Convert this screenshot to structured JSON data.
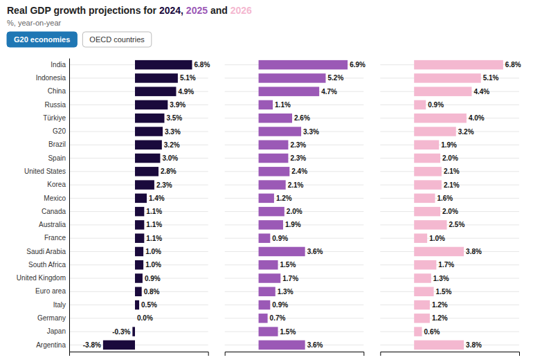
{
  "chart_data": [
    {
      "type": "bar",
      "orientation": "horizontal",
      "title": "Real GDP growth projections for 2024, 2025 and 2026",
      "subtitle": "%, year-on-year",
      "annotations": [
        "G20 economies",
        "OECD countries"
      ],
      "categories": [
        "India",
        "Indonesia",
        "China",
        "Russia",
        "Türkiye",
        "G20",
        "Brazil",
        "Spain",
        "United States",
        "Korea",
        "Mexico",
        "Canada",
        "Australia",
        "France",
        "Saudi Arabia",
        "South Africa",
        "United Kingdom",
        "Euro area",
        "Italy",
        "Germany",
        "Japan",
        "Argentina"
      ],
      "series": [
        {
          "name": "2024",
          "color": "#1a0a3c",
          "values": [
            6.8,
            5.1,
            4.9,
            3.9,
            3.5,
            3.3,
            3.2,
            3.0,
            2.8,
            2.3,
            1.4,
            1.1,
            1.1,
            1.1,
            1.0,
            1.0,
            0.9,
            0.8,
            0.5,
            0.0,
            -0.3,
            -3.8
          ],
          "value_labels": [
            "6.8%",
            "5.1%",
            "4.9%",
            "3.9%",
            "3.5%",
            "3.3%",
            "3.2%",
            "3.0%",
            "2.8%",
            "2.3%",
            "1.4%",
            "1.1%",
            "1.1%",
            "1.1%",
            "1.0%",
            "1.0%",
            "0.9%",
            "0.8%",
            "0.5%",
            "0.0%",
            "-0.3%",
            "-3.8%"
          ]
        }
      ],
      "xlim": [
        -7.828,
        8.708
      ],
      "grid": true,
      "data_labels": true,
      "tick_labels": "y"
    },
    {
      "type": "bar",
      "orientation": "horizontal",
      "series": [
        {
          "name": "2025",
          "color": "#9b59b6",
          "values": [
            6.9,
            5.2,
            4.7,
            1.1,
            2.6,
            3.3,
            2.3,
            2.3,
            2.4,
            2.1,
            1.2,
            2.0,
            1.9,
            0.9,
            3.6,
            1.5,
            1.7,
            1.3,
            0.9,
            0.7,
            1.5,
            3.6
          ],
          "value_labels": [
            "6.9%",
            "5.2%",
            "4.7%",
            "1.1%",
            "2.6%",
            "3.3%",
            "2.3%",
            "2.3%",
            "2.4%",
            "2.1%",
            "1.2%",
            "2.0%",
            "1.9%",
            "0.9%",
            "3.6%",
            "1.5%",
            "1.7%",
            "1.3%",
            "0.9%",
            "0.7%",
            "1.5%",
            "3.6%"
          ]
        }
      ],
      "xlim": [
        -2.622,
        8.142
      ],
      "grid": true,
      "data_labels": true,
      "tick_labels": false
    },
    {
      "type": "bar",
      "orientation": "horizontal",
      "series": [
        {
          "name": "2026",
          "color": "#f4b8d0",
          "values": [
            6.8,
            5.1,
            4.4,
            0.9,
            4.0,
            3.2,
            1.9,
            2.0,
            2.1,
            2.1,
            1.6,
            2.0,
            2.5,
            1.0,
            3.8,
            1.7,
            1.3,
            1.5,
            1.2,
            1.2,
            0.6,
            3.8
          ],
          "value_labels": [
            "6.8%",
            "5.1%",
            "4.4%",
            "0.9%",
            "4.0%",
            "3.2%",
            "1.9%",
            "2.0%",
            "2.1%",
            "2.1%",
            "1.6%",
            "2.0%",
            "2.5%",
            "1.0%",
            "3.8%",
            "1.7%",
            "1.3%",
            "1.5%",
            "1.2%",
            "1.2%",
            "0.6%",
            "3.8%"
          ]
        }
      ],
      "xlim": [
        -2.584,
        8.024
      ],
      "grid": true,
      "data_labels": true,
      "tick_labels": false
    }
  ]
}
